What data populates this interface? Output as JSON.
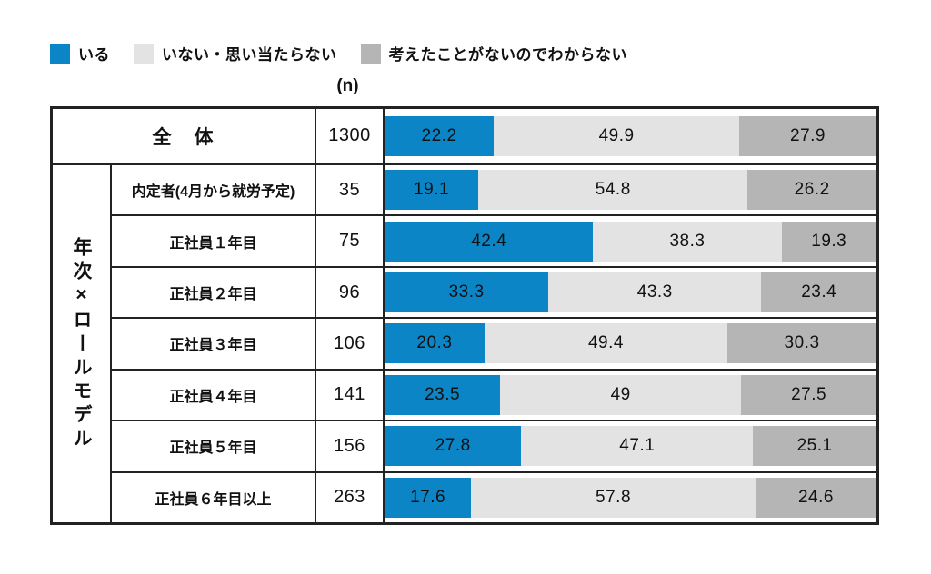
{
  "legend": [
    {
      "label": "いる",
      "color": "#0b85c6"
    },
    {
      "label": "いない・思い当たらない",
      "color": "#e3e3e3"
    },
    {
      "label": "考えたことがないのでわからない",
      "color": "#b5b5b5"
    }
  ],
  "n_header": "(n)",
  "group_label": "年次×ロールモデル",
  "chart_data": {
    "type": "bar",
    "stacked": true,
    "orientation": "horizontal",
    "value_unit": "%",
    "xlim": [
      0,
      100
    ],
    "series_names": [
      "いる",
      "いない・思い当たらない",
      "考えたことがないのでわからない"
    ],
    "colors": [
      "#0b85c6",
      "#e3e3e3",
      "#b5b5b5"
    ],
    "rows": [
      {
        "label": "全　体",
        "n": 1300,
        "values": [
          22.2,
          49.9,
          27.9
        ]
      },
      {
        "label": "内定者(4月から就労予定)",
        "n": 35,
        "values": [
          19.1,
          54.8,
          26.2
        ]
      },
      {
        "label": "正社員１年目",
        "n": 75,
        "values": [
          42.4,
          38.3,
          19.3
        ]
      },
      {
        "label": "正社員２年目",
        "n": 96,
        "values": [
          33.3,
          43.3,
          23.4
        ]
      },
      {
        "label": "正社員３年目",
        "n": 106,
        "values": [
          20.3,
          49.4,
          30.3
        ]
      },
      {
        "label": "正社員４年目",
        "n": 141,
        "values": [
          23.5,
          49,
          27.5
        ]
      },
      {
        "label": "正社員５年目",
        "n": 156,
        "values": [
          27.8,
          47.1,
          25.1
        ]
      },
      {
        "label": "正社員６年目以上",
        "n": 263,
        "values": [
          17.6,
          57.8,
          24.6
        ]
      }
    ]
  }
}
